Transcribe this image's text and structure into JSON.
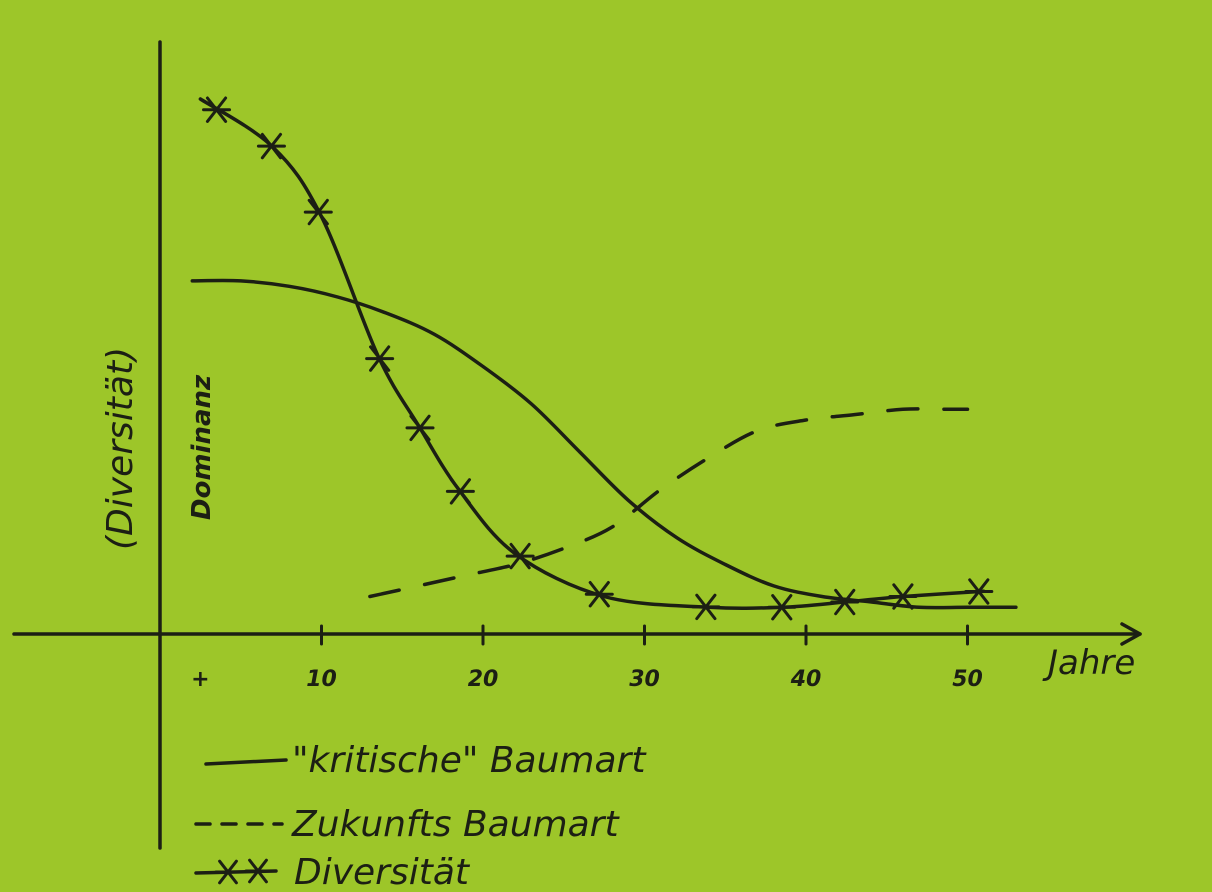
{
  "chart_data": {
    "type": "line",
    "title": "",
    "xlabel": "Jahre",
    "ylabel": "(Diversität)",
    "ylabel_secondary": "Dominanz",
    "x_ticks": [
      "+",
      "10",
      "20",
      "30",
      "40",
      "50"
    ],
    "xlim": [
      0,
      58
    ],
    "ylim": [
      0,
      100
    ],
    "grid": false,
    "legend_position": "bottom-left",
    "series": [
      {
        "name": "\"kritische\" Baumart",
        "style": "solid",
        "x": [
          2,
          5,
          8,
          11,
          14,
          17,
          20,
          23,
          26,
          29,
          32,
          35,
          38,
          41,
          44,
          47,
          50,
          53
        ],
        "y": [
          66,
          66,
          65,
          63,
          60,
          56,
          50,
          43,
          34,
          25,
          18,
          13,
          9,
          7,
          6,
          5,
          5,
          5
        ]
      },
      {
        "name": "Zukunfts Baumart",
        "style": "dashed",
        "x": [
          13,
          16,
          19,
          22,
          25,
          28,
          31,
          34,
          37,
          40,
          43,
          46,
          49,
          50
        ],
        "y": [
          7,
          9,
          11,
          13,
          16,
          20,
          27,
          33,
          38,
          40,
          41,
          42,
          42,
          42
        ]
      },
      {
        "name": "Diversität",
        "style": "asterisk",
        "x": [
          2.5,
          7,
          10,
          13.5,
          16,
          18.5,
          22,
          27.5,
          34,
          38.5,
          42.5,
          46,
          51
        ],
        "y": [
          100,
          91,
          78,
          52,
          39,
          27,
          15,
          7,
          5,
          5,
          6,
          7,
          8
        ],
        "marker_x": [
          3.5,
          6.9,
          9.8,
          13.6,
          16.1,
          18.6,
          22.3,
          27.2,
          33.8,
          38.5,
          42.4,
          46.0,
          50.7
        ]
      }
    ]
  },
  "colors": {
    "background": "#9dc629",
    "ink": "#1c1f14"
  }
}
